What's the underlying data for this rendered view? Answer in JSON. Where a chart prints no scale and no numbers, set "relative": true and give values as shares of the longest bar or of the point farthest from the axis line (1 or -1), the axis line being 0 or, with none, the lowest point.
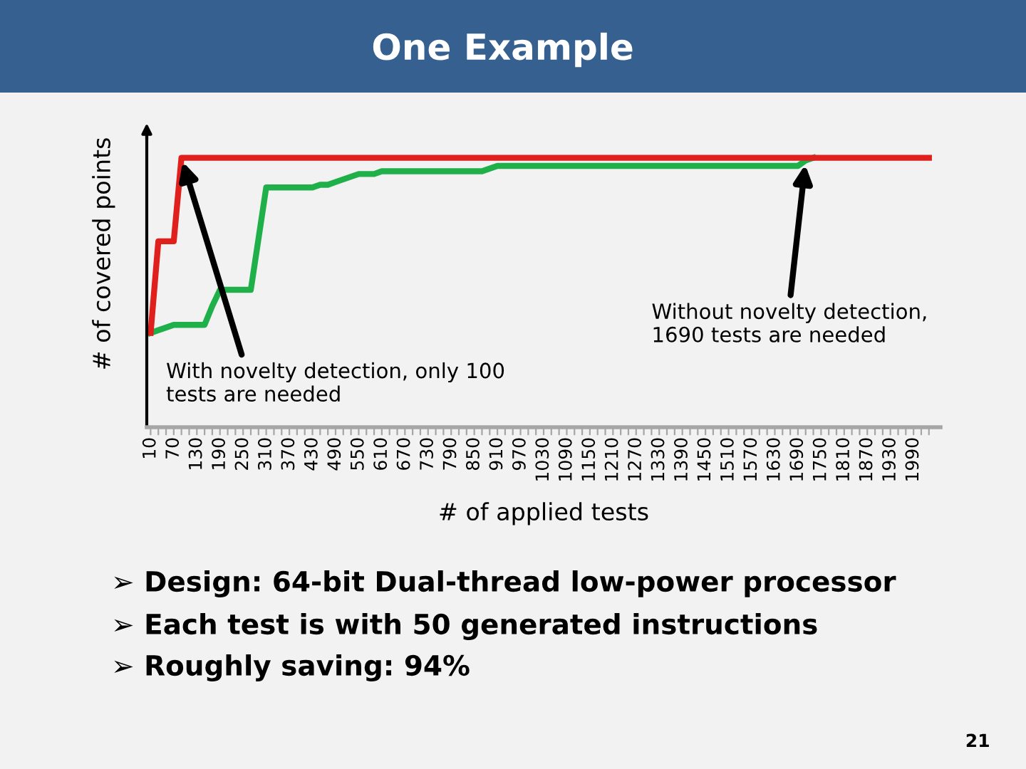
{
  "chart_data": {
    "type": "line",
    "title": "One Example",
    "xlabel": "# of applied tests",
    "ylabel": "# of covered points",
    "relative": true,
    "grid": false,
    "legend": false,
    "marker": "none",
    "line_style": "solid",
    "categories": [
      "10",
      null,
      null,
      "70",
      null,
      null,
      "130",
      null,
      null,
      "190",
      null,
      null,
      "250",
      null,
      null,
      "310",
      null,
      null,
      "370",
      null,
      null,
      "430",
      null,
      null,
      "490",
      null,
      null,
      "550",
      null,
      null,
      "610",
      null,
      null,
      "670",
      null,
      null,
      "730",
      null,
      null,
      "790",
      null,
      null,
      "850",
      null,
      null,
      "910",
      null,
      null,
      "970",
      null,
      null,
      "1030",
      null,
      null,
      "1090",
      null,
      null,
      "1150",
      null,
      null,
      "1210",
      null,
      null,
      "1270",
      null,
      null,
      "1330",
      null,
      null,
      "1390",
      null,
      null,
      "1450",
      null,
      null,
      "1510",
      null,
      null,
      "1570",
      null,
      null,
      "1630",
      null,
      null,
      "1690",
      null,
      null,
      "1750",
      null,
      null,
      "1810",
      null,
      null,
      "1870",
      null,
      null,
      "1930",
      null,
      null,
      "1990",
      null,
      null
    ],
    "series": [
      {
        "color": "#1fb04a",
        "values": [
          0.35,
          0.36,
          0.37,
          0.38,
          0.38,
          0.38,
          0.38,
          0.38,
          0.45,
          0.51,
          0.51,
          0.51,
          0.51,
          0.51,
          0.7,
          0.89,
          0.89,
          0.89,
          0.89,
          0.89,
          0.89,
          0.89,
          0.9,
          0.9,
          0.91,
          0.92,
          0.93,
          0.94,
          0.94,
          0.94,
          0.95,
          0.95,
          0.95,
          0.95,
          0.95,
          0.95,
          0.95,
          0.95,
          0.95,
          0.95,
          0.95,
          0.95,
          0.95,
          0.95,
          0.96,
          0.97,
          0.97,
          0.97,
          0.97,
          0.97,
          0.97,
          0.97,
          0.97,
          0.97,
          0.97,
          0.97,
          0.97,
          0.97,
          0.97,
          0.97,
          0.97,
          0.97,
          0.97,
          0.97,
          0.97,
          0.97,
          0.97,
          0.97,
          0.97,
          0.97,
          0.97,
          0.97,
          0.97,
          0.97,
          0.97,
          0.97,
          0.97,
          0.97,
          0.97,
          0.97,
          0.97,
          0.97,
          0.97,
          0.97,
          0.97,
          0.99,
          1,
          null,
          null,
          null,
          null,
          null,
          null,
          null,
          null,
          null,
          null,
          null,
          null,
          null,
          null,
          null
        ]
      },
      {
        "color": "#e0201c",
        "values": [
          0.35,
          0.69,
          0.69,
          0.69,
          1,
          1,
          1,
          1,
          1,
          1,
          1,
          1,
          1,
          1,
          1,
          1,
          1,
          1,
          1,
          1,
          1,
          1,
          1,
          1,
          1,
          1,
          1,
          1,
          1,
          1,
          1,
          1,
          1,
          1,
          1,
          1,
          1,
          1,
          1,
          1,
          1,
          1,
          1,
          1,
          1,
          1,
          1,
          1,
          1,
          1,
          1,
          1,
          1,
          1,
          1,
          1,
          1,
          1,
          1,
          1,
          1,
          1,
          1,
          1,
          1,
          1,
          1,
          1,
          1,
          1,
          1,
          1,
          1,
          1,
          1,
          1,
          1,
          1,
          1,
          1,
          1,
          1,
          1,
          1,
          1,
          1,
          1,
          1,
          1,
          1,
          1,
          1,
          1,
          1,
          1,
          1,
          1,
          1,
          1,
          1,
          1,
          1
        ]
      }
    ],
    "annotations": [
      "With novelty detection, only 100\ntests are needed",
      "Without novelty detection,\n1690 tests are needed",
      "➢ Design: 64-bit Dual-thread low-power processor",
      "➢ Each test is with 50 generated instructions",
      "➢ Roughly saving: 94%",
      "21"
    ]
  }
}
